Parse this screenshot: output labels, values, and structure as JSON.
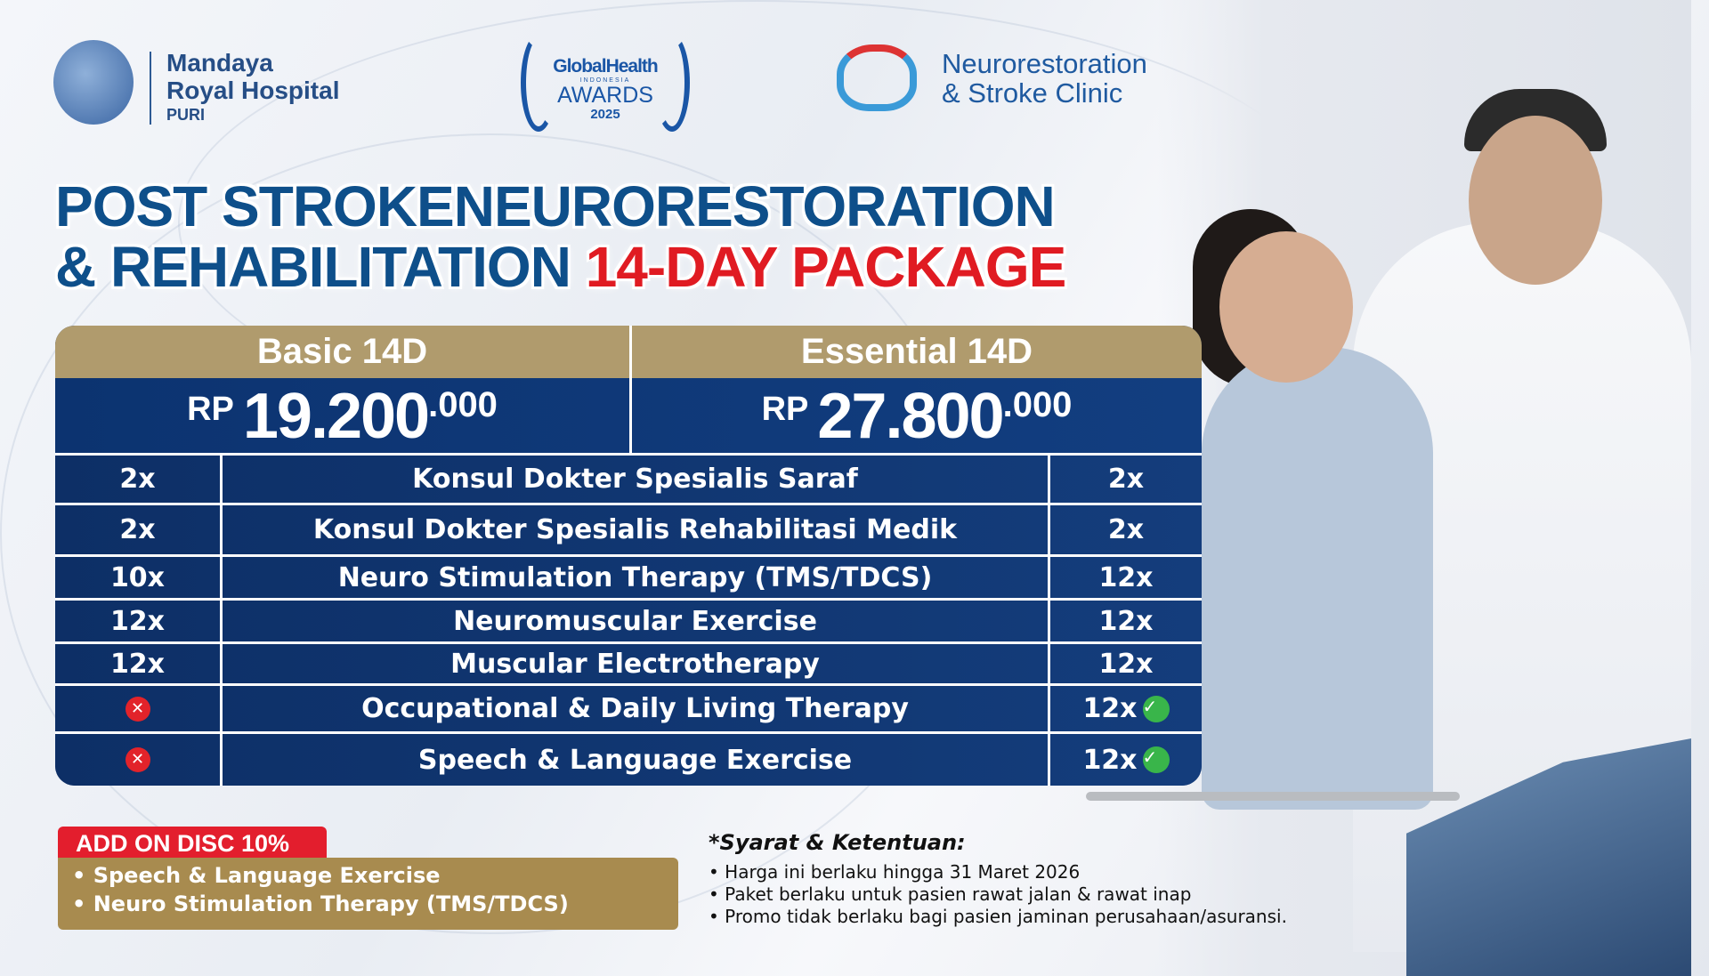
{
  "logos": {
    "hospital": {
      "line1": "Mandaya",
      "line2": "Royal Hospital",
      "line3": "PURI"
    },
    "award": {
      "line1": "GlobalHealth",
      "line2": "INDONESIA",
      "line3": "AWARDS",
      "line4": "2025"
    },
    "clinic": {
      "line1": "Neurorestoration",
      "line2": "& Stroke Clinic"
    }
  },
  "title": {
    "line1": "POST STROKENEURORESTORATION",
    "line2_blue": "& REHABILITATION",
    "line2_red": "14-DAY PACKAGE"
  },
  "colors": {
    "blue": "#0e4f8a",
    "red": "#e01b22",
    "gold": "#b09b6d",
    "navy": "#0d2f66"
  },
  "packages": [
    {
      "name": "Basic 14D",
      "currency": "RP",
      "amount": "19.200",
      "decimals": ".000"
    },
    {
      "name": "Essential 14D",
      "currency": "RP",
      "amount": "27.800",
      "decimals": ".000"
    }
  ],
  "rows": [
    {
      "basic": "2x",
      "service": "Konsul Dokter Spesialis Saraf",
      "essential": "2x"
    },
    {
      "basic": "2x",
      "service": "Konsul Dokter Spesialis Rehabilitasi Medik",
      "essential": "2x"
    },
    {
      "basic": "10x",
      "service": "Neuro Stimulation Therapy (TMS/TDCS)",
      "essential": "12x"
    },
    {
      "basic": "12x",
      "service": "Neuromuscular Exercise",
      "essential": "12x"
    },
    {
      "basic": "12x",
      "service": "Muscular Electrotherapy",
      "essential": "12x"
    },
    {
      "basic_icon": "x-circle-icon",
      "service": "Occupational & Daily Living Therapy",
      "essential": "12x",
      "essential_icon": "check-circle-icon"
    },
    {
      "basic_icon": "x-circle-icon",
      "service": "Speech & Language Exercise",
      "essential": "12x",
      "essential_icon": "check-circle-icon"
    }
  ],
  "addon": {
    "label": "ADD ON DISC 10%",
    "items": [
      "Speech & Language Exercise",
      "Neuro Stimulation Therapy (TMS/TDCS)"
    ]
  },
  "terms": {
    "heading": "*Syarat & Ketentuan:",
    "items": [
      "Harga ini berlaku hingga 31 Maret 2026",
      "Paket berlaku untuk pasien rawat jalan & rawat inap",
      "Promo tidak berlaku bagi pasien jaminan perusahaan/asuransi."
    ]
  }
}
